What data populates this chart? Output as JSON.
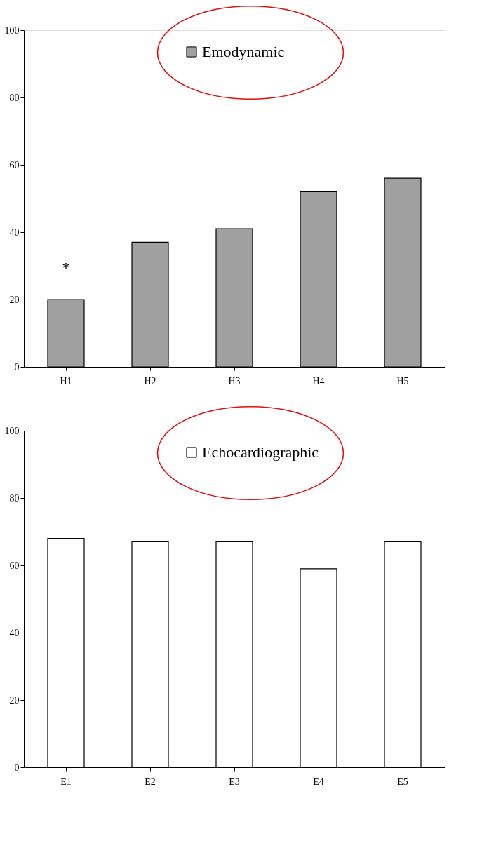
{
  "chart_data": [
    {
      "type": "bar",
      "categories": [
        "H1",
        "H2",
        "H3",
        "H4",
        "H5"
      ],
      "series": [
        {
          "name": "Emodynamic",
          "color": "#a0a0a0",
          "values": [
            20,
            37,
            41,
            52,
            56
          ]
        }
      ],
      "ylim": [
        0,
        100
      ],
      "yticks": [
        0,
        20,
        40,
        60,
        80,
        100
      ],
      "grid": false,
      "legend": "top",
      "annotations": [
        "*"
      ]
    },
    {
      "type": "bar",
      "categories": [
        "E1",
        "E2",
        "E3",
        "E4",
        "E5"
      ],
      "series": [
        {
          "name": "Echocardiographic",
          "color": "#ffffff",
          "values": [
            68,
            67,
            67,
            59,
            67
          ]
        }
      ],
      "ylim": [
        0,
        100
      ],
      "yticks": [
        0,
        20,
        40,
        60,
        80,
        100
      ],
      "grid": false,
      "legend": "top"
    }
  ]
}
